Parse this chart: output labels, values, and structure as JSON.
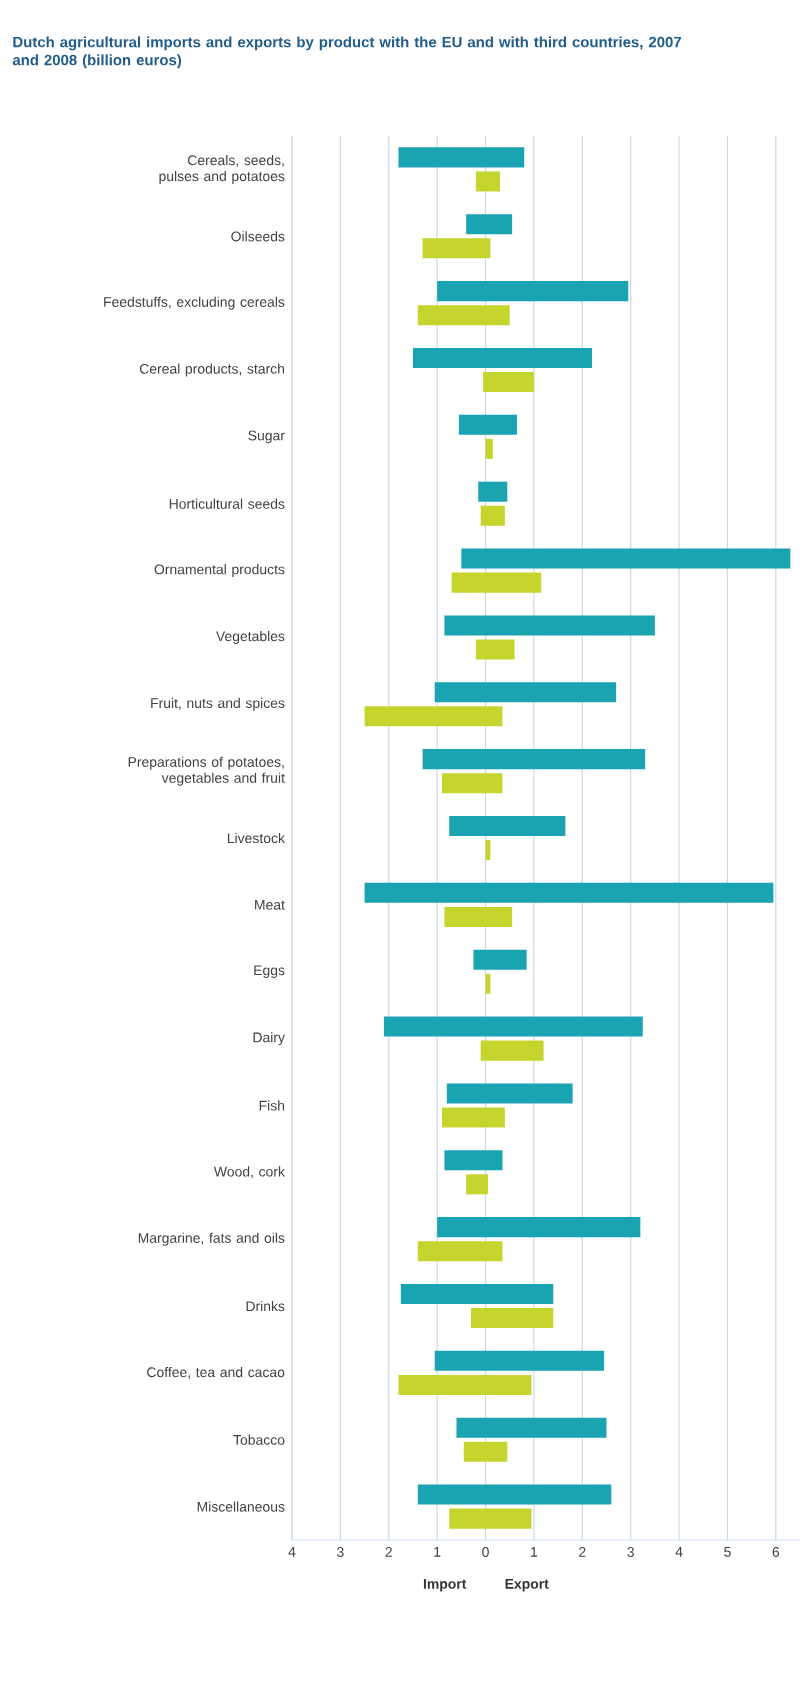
{
  "chart_data": {
    "type": "bar",
    "orientation": "horizontal",
    "title": "Dutch agricultural imports and exports by product with the EU and with third countries, 2007 and 2008 (billion euros)",
    "categories": [
      "Cereals, seeds, pulses and potatoes",
      "Oilseeds",
      "Feedstuffs, excluding cereals",
      "Cereal products, starch",
      "Sugar",
      "Horticultural seeds",
      "Ornamental products",
      "Vegetables",
      "Fruit, nuts and spices",
      "Preparations of potatoes, vegetables and fruit",
      "Livestock",
      "Meat",
      "Eggs",
      "Dairy",
      "Fish",
      "Wood, cork",
      "Margarine, fats and oils",
      "Drinks",
      "Coffee, tea and cacao",
      "Tobacco",
      "Miscellaneous"
    ],
    "series": [
      {
        "color": "#1aa3b0",
        "base": [
          -1.8,
          -0.4,
          -1.0,
          -1.5,
          -0.55,
          -0.15,
          -0.5,
          -0.85,
          -1.05,
          -1.3,
          -0.75,
          -2.5,
          -0.25,
          -2.1,
          -0.8,
          -0.85,
          -1.0,
          -1.75,
          -1.05,
          -0.6,
          -1.4
        ],
        "values": [
          2.6,
          0.95,
          3.95,
          3.7,
          1.2,
          0.6,
          6.8,
          4.35,
          3.75,
          4.6,
          2.4,
          8.45,
          1.1,
          5.35,
          2.6,
          1.2,
          4.2,
          3.15,
          3.5,
          3.1,
          4.0
        ]
      },
      {
        "color": "#c5d52e",
        "base": [
          -0.2,
          -1.3,
          -1.4,
          -0.05,
          0,
          -0.1,
          -0.7,
          -0.2,
          -2.5,
          -0.9,
          0,
          -0.85,
          0,
          -0.1,
          -0.9,
          -0.4,
          -1.4,
          -0.3,
          -1.8,
          -0.45,
          -0.75
        ],
        "values": [
          0.5,
          1.4,
          1.9,
          1.05,
          0.15,
          0.5,
          1.85,
          0.8,
          2.85,
          1.25,
          0.1,
          1.4,
          0.1,
          1.3,
          1.3,
          0.45,
          1.75,
          1.7,
          2.75,
          0.9,
          1.7
        ]
      }
    ],
    "xlim": [
      -4,
      6.5
    ],
    "xticks": [
      {
        "value": -4,
        "label": "4"
      },
      {
        "value": -3,
        "label": "3"
      },
      {
        "value": -2,
        "label": "2"
      },
      {
        "value": -1,
        "label": "1"
      },
      0,
      1,
      2,
      3,
      4,
      5,
      6
    ],
    "grid": "x",
    "annotations": [
      "Import",
      "Export"
    ]
  }
}
